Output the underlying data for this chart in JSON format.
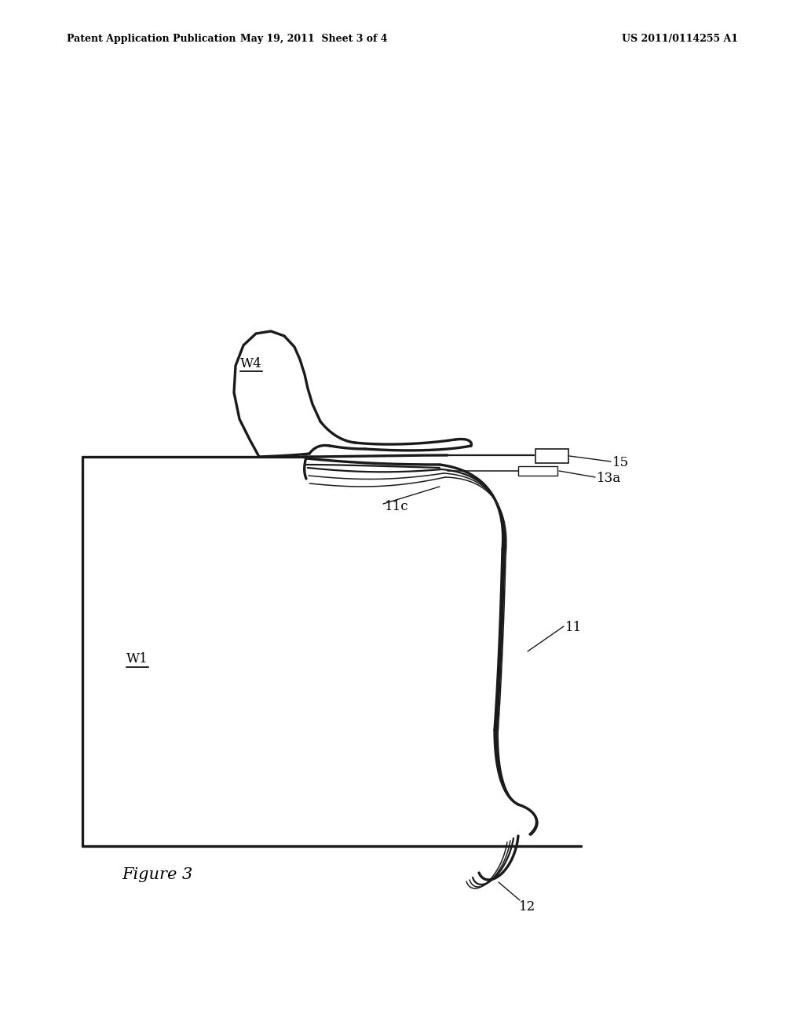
{
  "bg_color": "#ffffff",
  "line_color": "#1a1a1a",
  "header_left": "Patent Application Publication",
  "header_mid": "May 19, 2011  Sheet 3 of 4",
  "header_right": "US 2011/0114255 A1",
  "figure_label": "Figure 3",
  "lw_thick": 2.4,
  "lw_med": 1.6,
  "lw_thin": 1.1,
  "label_fs": 12,
  "header_fs": 9
}
